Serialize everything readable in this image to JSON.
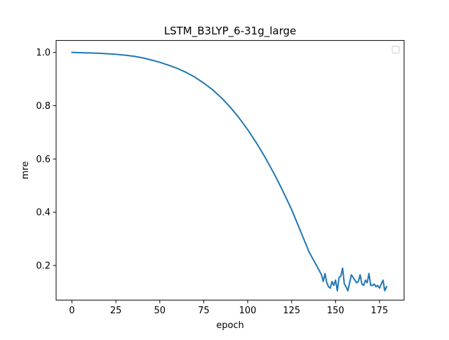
{
  "chart_data": {
    "type": "line",
    "title": "LSTM_B3LYP_6-31g_large",
    "xlabel": "epoch",
    "ylabel": "mre",
    "xlim": [
      -9,
      189
    ],
    "ylim": [
      0.07,
      1.045
    ],
    "xticks": [
      0,
      25,
      50,
      75,
      100,
      125,
      150,
      175
    ],
    "yticks": [
      0.2,
      0.4,
      0.6,
      0.8,
      1.0
    ],
    "xtick_labels": [
      "0",
      "25",
      "50",
      "75",
      "100",
      "125",
      "150",
      "175"
    ],
    "ytick_labels": [
      "0.2",
      "0.4",
      "0.6",
      "0.8",
      "1.0"
    ],
    "grid": false,
    "legend": {
      "placement": "top-right",
      "entries": []
    },
    "series": [
      {
        "color": "#1f77b4",
        "x": [
          0,
          5,
          10,
          15,
          20,
          25,
          30,
          35,
          40,
          45,
          50,
          55,
          60,
          65,
          70,
          75,
          80,
          85,
          90,
          95,
          100,
          105,
          110,
          115,
          120,
          125,
          130,
          135,
          140,
          142,
          143,
          144,
          145,
          146,
          147,
          148,
          149,
          150,
          151,
          152,
          153,
          154,
          155,
          156,
          157,
          158,
          159,
          160,
          161,
          162,
          163,
          164,
          165,
          166,
          167,
          168,
          169,
          170,
          171,
          172,
          173,
          174,
          175,
          176,
          177,
          178,
          179
        ],
        "y": [
          1.0,
          0.999,
          0.998,
          0.997,
          0.995,
          0.993,
          0.99,
          0.986,
          0.98,
          0.972,
          0.963,
          0.952,
          0.94,
          0.925,
          0.907,
          0.885,
          0.86,
          0.83,
          0.795,
          0.755,
          0.71,
          0.66,
          0.605,
          0.545,
          0.48,
          0.41,
          0.33,
          0.25,
          0.19,
          0.165,
          0.14,
          0.17,
          0.135,
          0.12,
          0.115,
          0.14,
          0.125,
          0.145,
          0.105,
          0.155,
          0.16,
          0.19,
          0.13,
          0.12,
          0.105,
          0.135,
          0.165,
          0.155,
          0.145,
          0.135,
          0.14,
          0.165,
          0.13,
          0.125,
          0.145,
          0.135,
          0.17,
          0.125,
          0.125,
          0.13,
          0.12,
          0.125,
          0.115,
          0.13,
          0.145,
          0.105,
          0.12
        ]
      }
    ]
  }
}
